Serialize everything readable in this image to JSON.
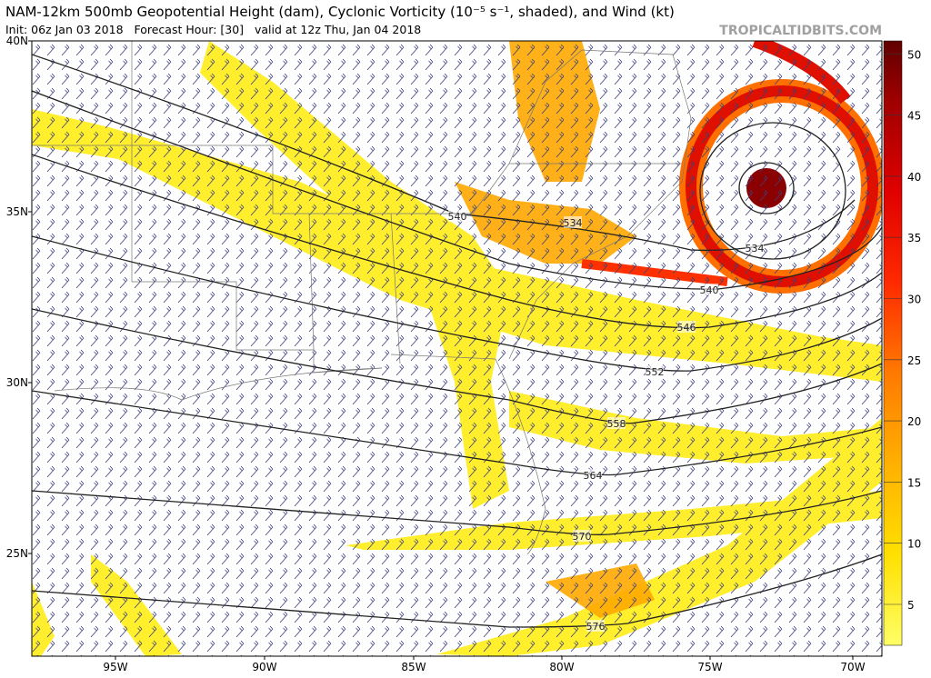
{
  "header": {
    "title": "NAM-12km 500mb Geopotential Height (dam), Cyclonic Vorticity (10⁻⁵ s⁻¹, shaded), and Wind (kt)",
    "subtitle": "Init: 06z Jan 03 2018   Forecast Hour: [30]   valid at 12z Thu, Jan 04 2018",
    "watermark": "TROPICALTIDBITS.COM"
  },
  "map": {
    "lat_labels": [
      "40N",
      "35N",
      "30N",
      "25N"
    ],
    "lon_labels": [
      "95W",
      "90W",
      "85W",
      "80W",
      "75W",
      "70W"
    ],
    "contour_labels": [
      "540",
      "534",
      "534",
      "540",
      "546",
      "552",
      "558",
      "564",
      "570",
      "576"
    ]
  },
  "colorbar": {
    "ticks": [
      "5",
      "10",
      "15",
      "20",
      "25",
      "30",
      "35",
      "40",
      "45",
      "50"
    ]
  }
}
